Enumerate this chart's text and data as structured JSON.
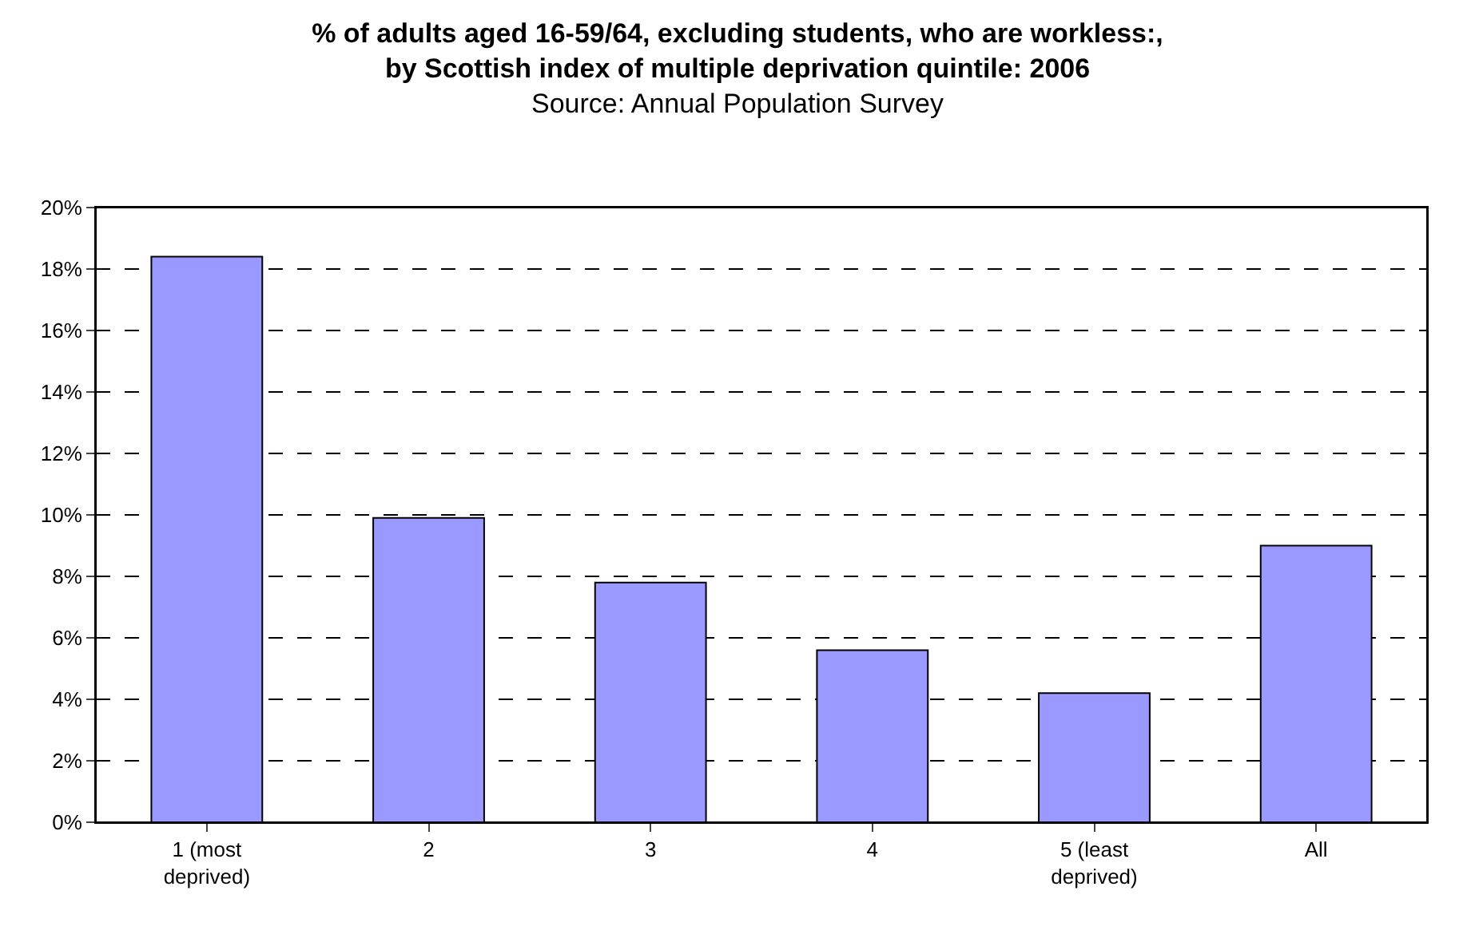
{
  "chart_data": {
    "type": "bar",
    "title": "% of adults aged 16-59/64, excluding students, who are workless:,\nby Scottish index of multiple deprivation quintile: 2006",
    "subtitle": "Source: Annual Population Survey",
    "categories": [
      "1 (most\ndeprived)",
      "2",
      "3",
      "4",
      "5 (least\ndeprived)",
      "All"
    ],
    "values": [
      18.4,
      9.9,
      7.8,
      5.6,
      4.2,
      9.0
    ],
    "color": "#9999ff",
    "ylim": [
      0,
      20
    ],
    "yticks": [
      {
        "value": 0,
        "label": "0%"
      },
      {
        "value": 2,
        "label": "2%"
      },
      {
        "value": 4,
        "label": "4%"
      },
      {
        "value": 6,
        "label": "6%"
      },
      {
        "value": 8,
        "label": "8%"
      },
      {
        "value": 10,
        "label": "10%"
      },
      {
        "value": 12,
        "label": "12%"
      },
      {
        "value": 14,
        "label": "14%"
      },
      {
        "value": 16,
        "label": "16%"
      },
      {
        "value": 18,
        "label": "18%"
      },
      {
        "value": 20,
        "label": "20%"
      }
    ],
    "grid": "y"
  }
}
